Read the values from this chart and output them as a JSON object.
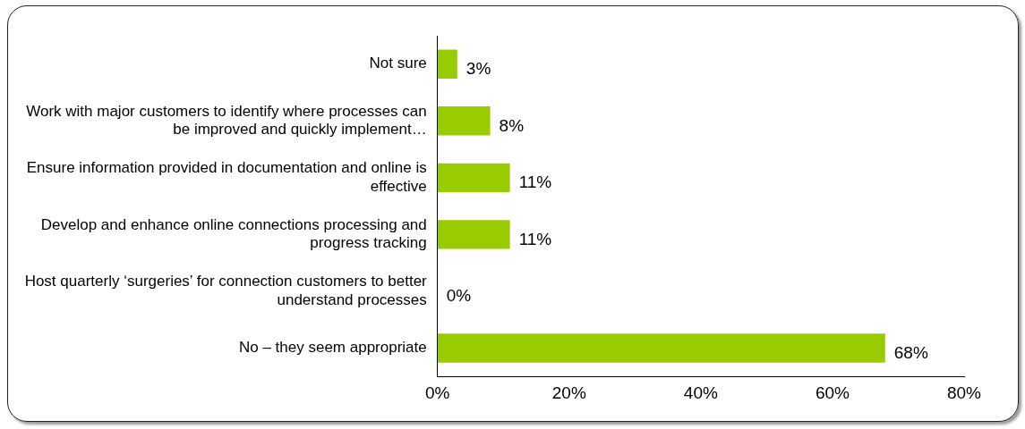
{
  "chart_data": {
    "type": "bar",
    "orientation": "horizontal",
    "categories": [
      "Not sure",
      "Work with major customers to identify where processes can be improved and quickly implement…",
      "Ensure information provided in documentation and online is effective",
      "Develop and enhance online connections processing and progress tracking",
      "Host quarterly ‘surgeries’ for connection customers to better understand processes",
      "No – they seem appropriate"
    ],
    "values": [
      3,
      8,
      11,
      11,
      0,
      68
    ],
    "value_labels": [
      "3%",
      "8%",
      "11%",
      "11%",
      "0%",
      "68%"
    ],
    "color": "#99cc00",
    "xlim": [
      0,
      80
    ],
    "xticks": [
      {
        "value": 0,
        "label": "0%"
      },
      {
        "value": 20,
        "label": "20%"
      },
      {
        "value": 40,
        "label": "40%"
      },
      {
        "value": 60,
        "label": "60%"
      },
      {
        "value": 80,
        "label": "80%"
      }
    ],
    "grid": false,
    "legend": false
  }
}
